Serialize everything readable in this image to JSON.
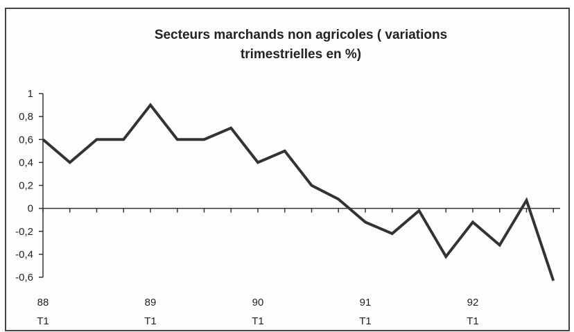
{
  "chart_data": {
    "type": "line",
    "title": [
      "Secteurs marchands non agricoles ( variations",
      "trimestrielles en %)"
    ],
    "categories": [
      [
        "88",
        "T1"
      ],
      null,
      null,
      null,
      [
        "89",
        "T1"
      ],
      null,
      null,
      null,
      [
        "90",
        "T1"
      ],
      null,
      null,
      null,
      [
        "91",
        "T1"
      ],
      null,
      null,
      null,
      [
        "92",
        "T1"
      ],
      null,
      null,
      null
    ],
    "series": [
      {
        "color": "#333333",
        "values": [
          0.6,
          0.4,
          0.6,
          0.6,
          0.9,
          0.6,
          0.6,
          0.7,
          0.4,
          0.5,
          0.2,
          0.08,
          -0.12,
          -0.22,
          -0.02,
          -0.42,
          -0.12,
          -0.32,
          0.07,
          -0.63
        ]
      }
    ],
    "ylim": [
      -0.6,
      1
    ],
    "yticks": [
      1,
      {
        "value": 0.8,
        "label": "0,8"
      },
      {
        "value": 0.6,
        "label": "0,6"
      },
      {
        "value": 0.4,
        "label": "0,4"
      },
      {
        "value": 0.2,
        "label": "0,2"
      },
      0,
      {
        "value": -0.2,
        "label": "-0,2"
      },
      {
        "value": -0.4,
        "label": "-0,4"
      },
      {
        "value": -0.6,
        "label": "-0,6"
      }
    ]
  }
}
